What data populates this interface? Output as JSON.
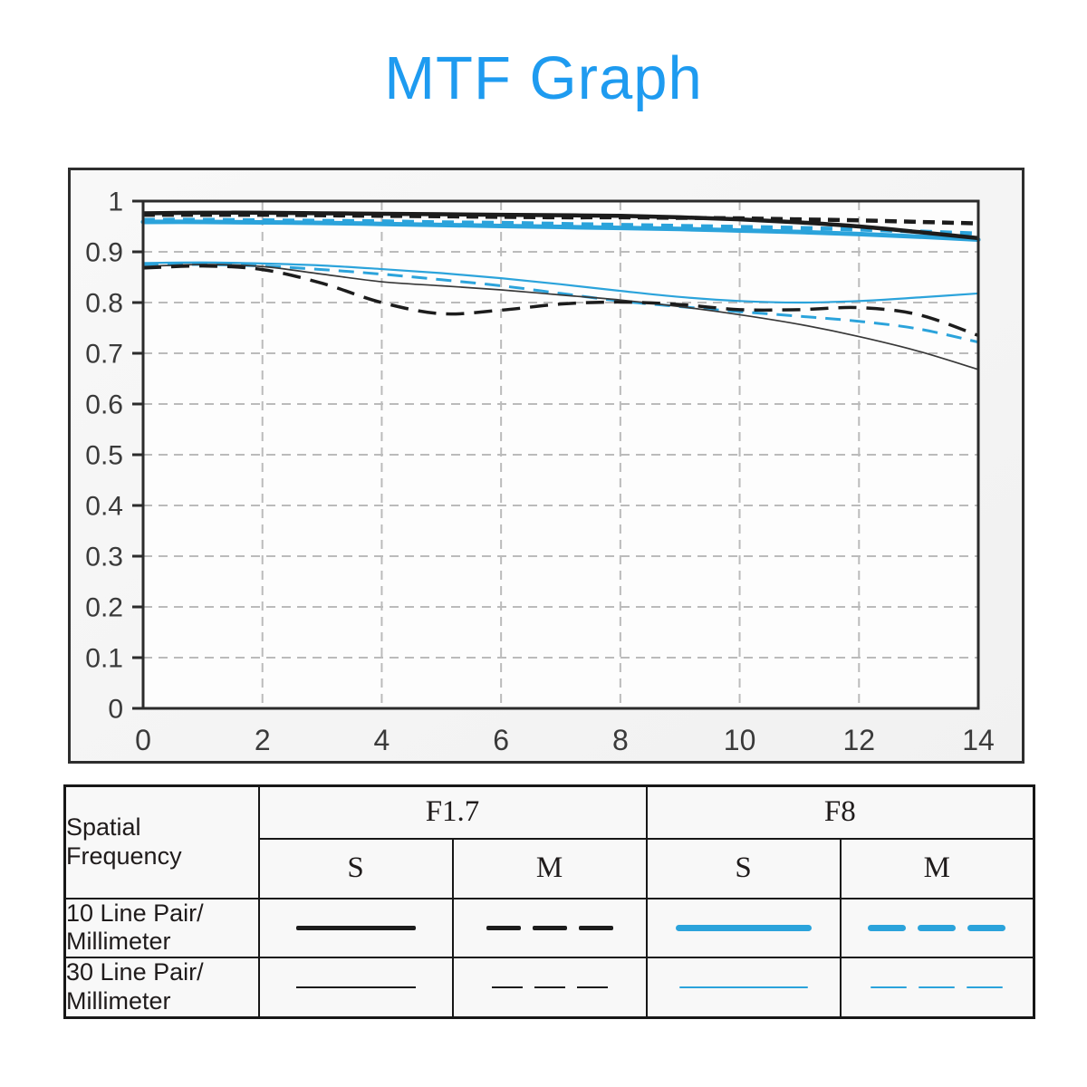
{
  "title": {
    "text": "MTF Graph",
    "color": "#1e9bf0"
  },
  "colors": {
    "black_line": "#1c1c1c",
    "thin_black_line": "#383838",
    "blue_line": "#2ba3db",
    "grid": "#bbbbbb",
    "axis": "#2b2b2b",
    "plot_bg": "#fdfdfd",
    "tick_text": "#3a3a3a"
  },
  "chart_data": {
    "type": "line",
    "title": "MTF Graph",
    "xlabel": "",
    "ylabel": "",
    "xlim": [
      0,
      14
    ],
    "ylim": [
      0,
      1
    ],
    "grid": true,
    "legend_position": "table-below",
    "x_ticks": [
      "0",
      "2",
      "4",
      "6",
      "8",
      "10",
      "12",
      "14"
    ],
    "y_ticks": [
      "1",
      "0.9",
      "0.8",
      "0.7",
      "0.6",
      "0.5",
      "0.4",
      "0.3",
      "0.2",
      "0.1",
      "0"
    ],
    "x": [
      0,
      1,
      2,
      3,
      4,
      5,
      6,
      7,
      8,
      9,
      10,
      11,
      12,
      13,
      14
    ],
    "series": [
      {
        "name": "F8 S 10 Line Pair/Millimeter",
        "aperture": "F8",
        "orientation": "S",
        "frequency": "10 lp/mm",
        "color": "#2ba3db",
        "dash": null,
        "width": 5,
        "linecap": "round",
        "values": [
          0.959,
          0.959,
          0.958,
          0.957,
          0.955,
          0.953,
          0.951,
          0.949,
          0.947,
          0.945,
          0.942,
          0.939,
          0.935,
          0.93,
          0.924
        ]
      },
      {
        "name": "F8 M 10 Line Pair/Millimeter",
        "aperture": "F8",
        "orientation": "M",
        "frequency": "10 lp/mm",
        "color": "#2ba3db",
        "dash": "13 9",
        "width": 4.5,
        "linecap": "butt",
        "values": [
          0.963,
          0.963,
          0.962,
          0.961,
          0.96,
          0.958,
          0.957,
          0.955,
          0.953,
          0.951,
          0.949,
          0.947,
          0.944,
          0.94,
          0.936
        ]
      },
      {
        "name": "F1.7 S 10 Line Pair/Millimeter",
        "aperture": "F1.7",
        "orientation": "S",
        "frequency": "10 lp/mm",
        "color": "#1c1c1c",
        "dash": null,
        "width": 4.5,
        "linecap": "butt",
        "values": [
          0.976,
          0.977,
          0.977,
          0.976,
          0.975,
          0.974,
          0.973,
          0.972,
          0.971,
          0.968,
          0.964,
          0.958,
          0.95,
          0.939,
          0.927
        ]
      },
      {
        "name": "F1.7 M 10 Line Pair/Millimeter",
        "aperture": "F1.7",
        "orientation": "M",
        "frequency": "10 lp/mm",
        "color": "#1c1c1c",
        "dash": "13 8",
        "width": 4.5,
        "linecap": "butt",
        "values": [
          0.973,
          0.973,
          0.973,
          0.972,
          0.971,
          0.97,
          0.969,
          0.968,
          0.968,
          0.967,
          0.966,
          0.964,
          0.962,
          0.959,
          0.956
        ]
      },
      {
        "name": "F8 M 30 Line Pair/Millimeter",
        "aperture": "F8",
        "orientation": "M",
        "frequency": "30 lp/mm",
        "color": "#2ba3db",
        "dash": "17 10",
        "width": 3,
        "linecap": "butt",
        "values": [
          0.874,
          0.875,
          0.872,
          0.865,
          0.856,
          0.845,
          0.833,
          0.818,
          0.803,
          0.792,
          0.782,
          0.773,
          0.763,
          0.748,
          0.722
        ]
      },
      {
        "name": "F8 S 30 Line Pair/Millimeter",
        "aperture": "F8",
        "orientation": "S",
        "frequency": "30 lp/mm",
        "color": "#2ba3db",
        "dash": null,
        "width": 2.2,
        "linecap": "butt",
        "values": [
          0.878,
          0.879,
          0.877,
          0.873,
          0.866,
          0.858,
          0.848,
          0.836,
          0.823,
          0.811,
          0.803,
          0.8,
          0.803,
          0.81,
          0.818
        ]
      },
      {
        "name": "F1.7 S 30 Line Pair/Millimeter",
        "aperture": "F1.7",
        "orientation": "S",
        "frequency": "30 lp/mm",
        "color": "#383838",
        "dash": null,
        "width": 1.7,
        "linecap": "butt",
        "values": [
          0.871,
          0.875,
          0.871,
          0.856,
          0.841,
          0.833,
          0.825,
          0.815,
          0.805,
          0.792,
          0.776,
          0.757,
          0.733,
          0.704,
          0.668
        ]
      },
      {
        "name": "F1.7 M 30 Line Pair/Millimeter",
        "aperture": "F1.7",
        "orientation": "M",
        "frequency": "30 lp/mm",
        "color": "#1c1c1c",
        "dash": "20 11",
        "width": 3.5,
        "linecap": "butt",
        "values": [
          0.868,
          0.872,
          0.865,
          0.838,
          0.8,
          0.778,
          0.785,
          0.797,
          0.801,
          0.796,
          0.786,
          0.786,
          0.79,
          0.776,
          0.735
        ]
      }
    ]
  },
  "legend_table": {
    "corner_label": "Spatial\nFrequency",
    "col_groups": [
      {
        "label": "F1.7"
      },
      {
        "label": "F8"
      }
    ],
    "sub_cols": [
      "S",
      "M",
      "S",
      "M"
    ],
    "rows": [
      {
        "label": "10 Line Pair/\nMillimeter"
      },
      {
        "label": "30 Line Pair/\nMillimeter"
      }
    ]
  }
}
